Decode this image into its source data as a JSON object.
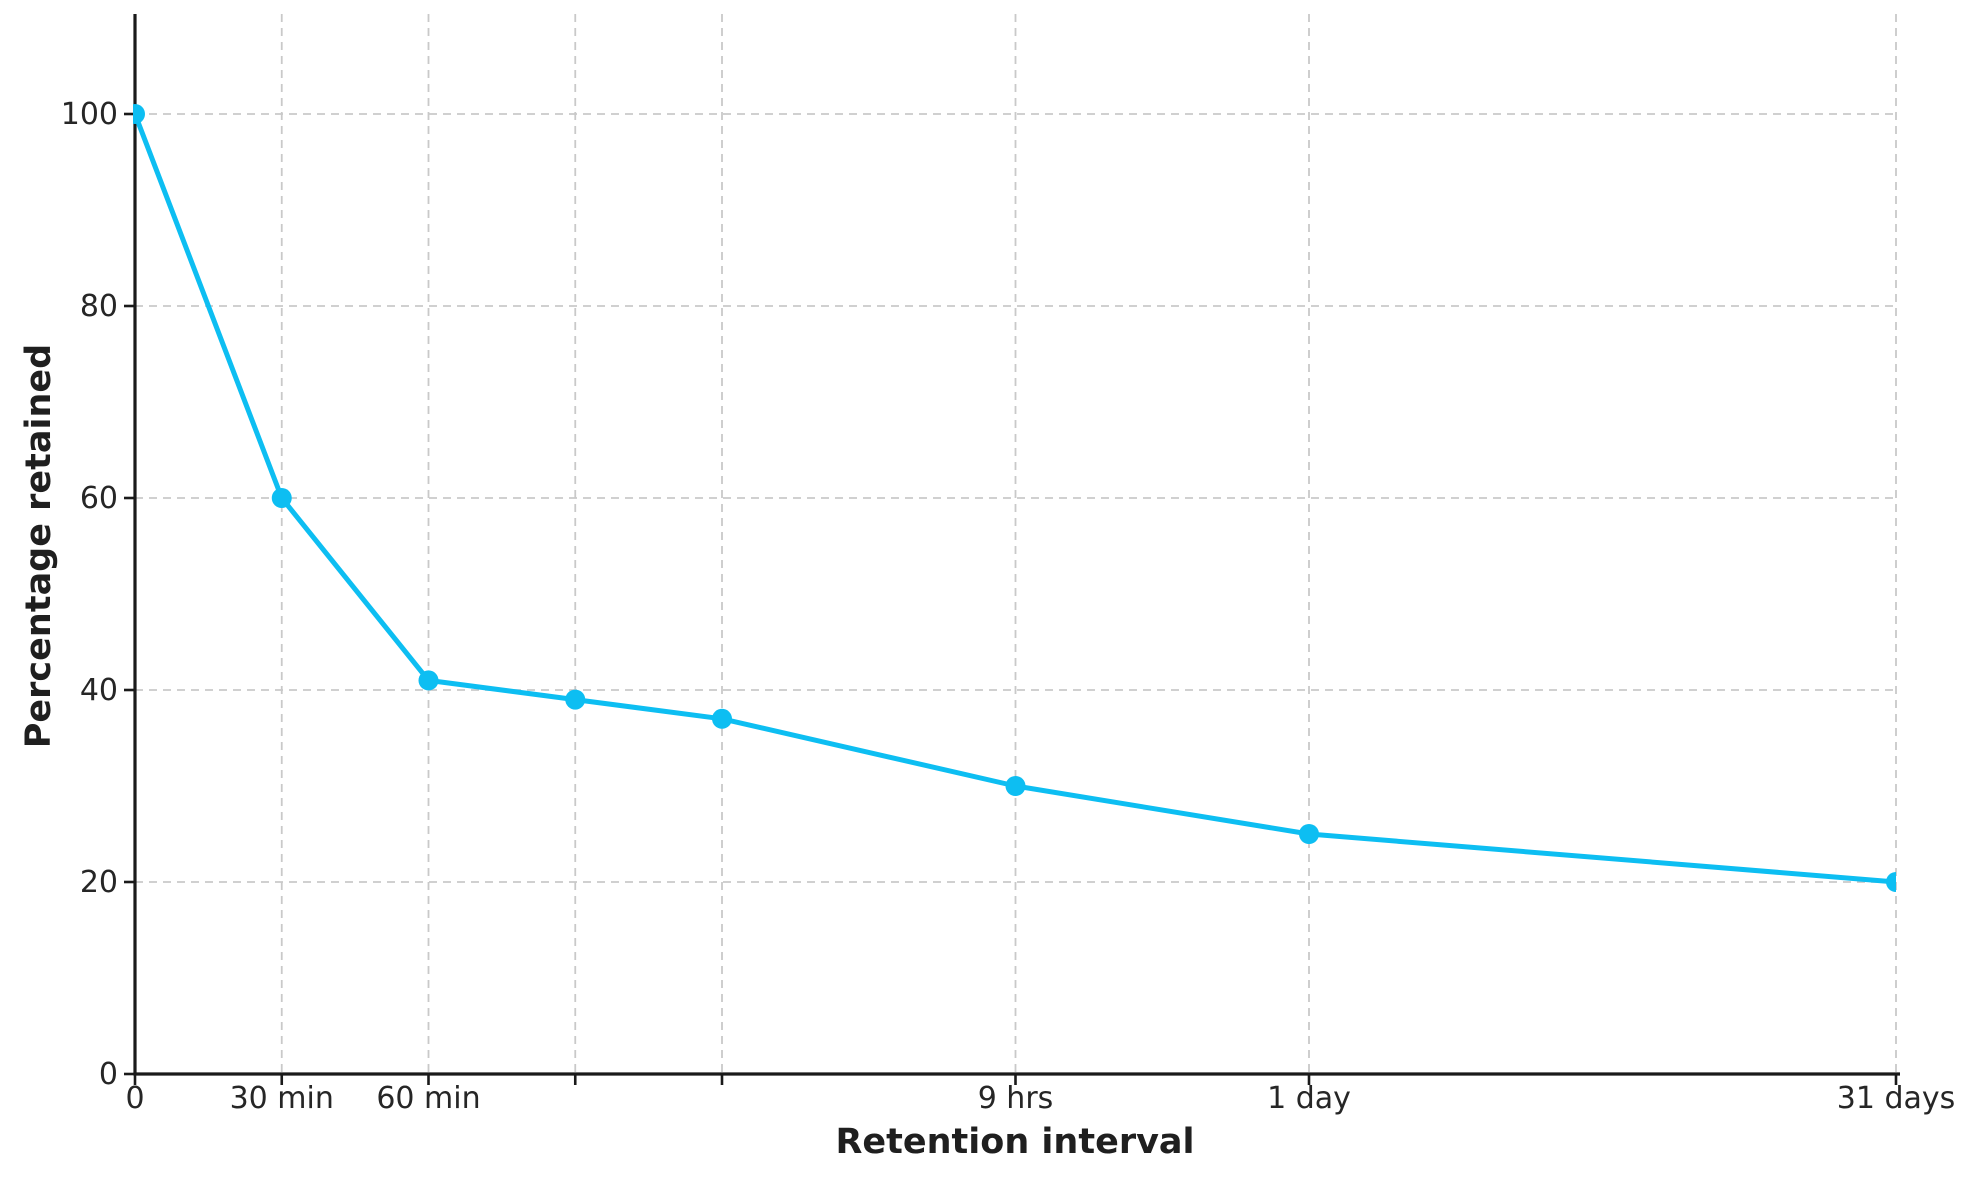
{
  "figure": {
    "background": "#ffffff"
  },
  "chart_data": {
    "type": "line",
    "title": "",
    "xlabel": "Retention interval",
    "ylabel": "Percentage retained",
    "x": [
      0,
      1,
      2,
      3,
      4,
      6,
      8,
      12
    ],
    "x_tick_labels": [
      "0",
      "30 min",
      "60 min",
      "",
      "",
      "9 hrs",
      "1 day",
      "31 days"
    ],
    "values": [
      100,
      60,
      41,
      39,
      37,
      30,
      25,
      20
    ],
    "points": [
      {
        "interval": "0",
        "retained_pct": 100
      },
      {
        "interval": "30 min",
        "retained_pct": 60
      },
      {
        "interval": "60 min",
        "retained_pct": 41
      },
      {
        "interval": "",
        "retained_pct": 39
      },
      {
        "interval": "",
        "retained_pct": 37
      },
      {
        "interval": "9 hrs",
        "retained_pct": 30
      },
      {
        "interval": "1 day",
        "retained_pct": 25
      },
      {
        "interval": "31 days",
        "retained_pct": 20
      }
    ],
    "xlim": [
      0,
      12
    ],
    "ylim": [
      0,
      110
    ],
    "yticks": [
      0,
      20,
      40,
      60,
      80,
      100
    ],
    "grid": true,
    "grid_style": "dashed",
    "legend": false,
    "line_color": "#0dbef2",
    "marker": "circle",
    "marker_radius": 10,
    "line_width": 5,
    "grid_color": "#c9c9c9",
    "axis_color": "#1a1a1a",
    "tick_label_color": "#262626",
    "axis_label_color": "#1f1f1f"
  }
}
